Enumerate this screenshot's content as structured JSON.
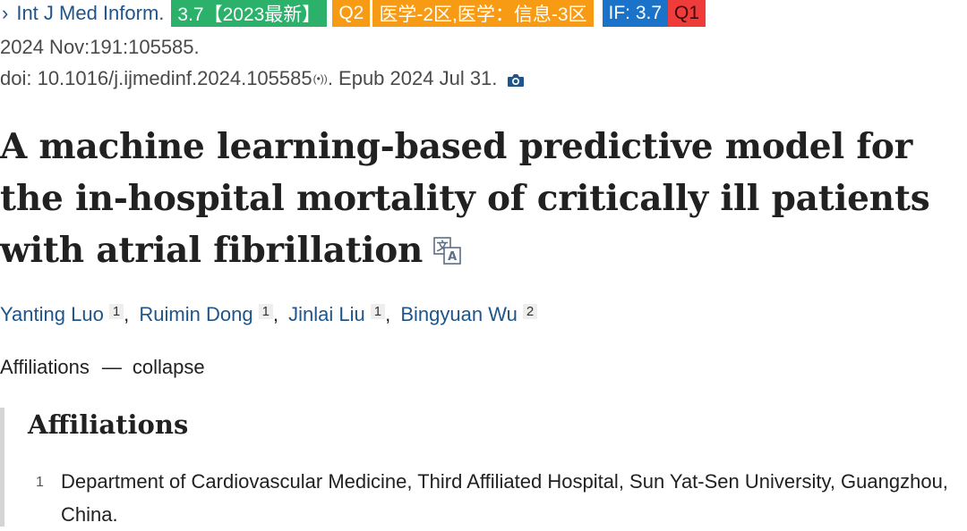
{
  "journal": {
    "name": "Int J Med Inform.",
    "badges": {
      "impact_latest": "3.7【2023最新】",
      "quartile": "Q2",
      "cas_zone": "医学-2区,医学：信息-3区",
      "if_label": "IF: 3.7",
      "jcr": "Q1"
    },
    "colors": {
      "green": "#2bb16a",
      "orange": "#f79a14",
      "blue": "#1a73c8",
      "red": "#f03b3b",
      "link": "#20558a"
    }
  },
  "citation": {
    "date_volume": "2024 Nov:191:105585.",
    "doi": "doi: 10.1016/j.ijmedinf.2024.105585",
    "doi_sup": "(•))",
    "epub": ". Epub 2024 Jul 31."
  },
  "article": {
    "title": "A machine learning-based predictive model for the in-hospital mortality of critically ill patients with atrial fibrillation"
  },
  "authors": [
    {
      "name": "Yanting Luo",
      "aff": "1"
    },
    {
      "name": "Ruimin Dong",
      "aff": "1"
    },
    {
      "name": "Jinlai Liu",
      "aff": "1"
    },
    {
      "name": "Bingyuan Wu",
      "aff": "2"
    }
  ],
  "affiliations_toggle": {
    "label": "Affiliations",
    "dash": "—",
    "action": "collapse"
  },
  "affiliations": {
    "heading": "Affiliations",
    "items": [
      {
        "num": "1",
        "text": "Department of Cardiovascular Medicine, Third Affiliated Hospital, Sun Yat-Sen University, Guangzhou, China."
      }
    ]
  }
}
